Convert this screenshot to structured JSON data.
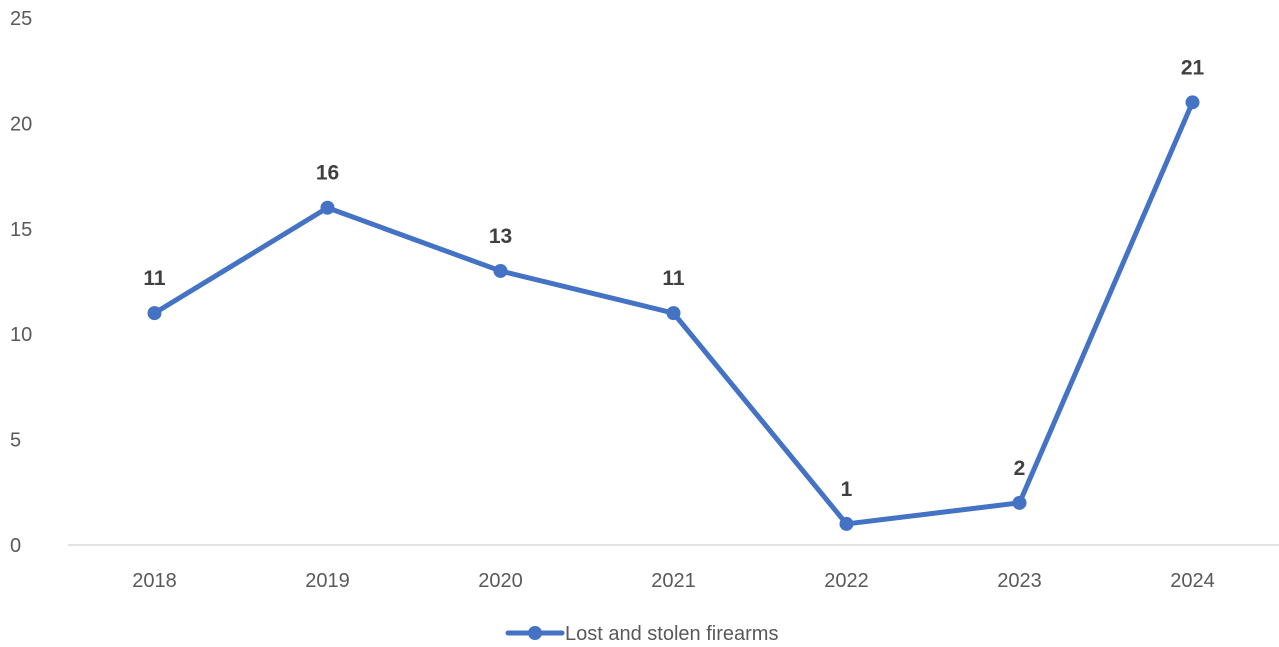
{
  "chart_data": {
    "type": "line",
    "categories": [
      "2018",
      "2019",
      "2020",
      "2021",
      "2022",
      "2023",
      "2024"
    ],
    "series": [
      {
        "name": "Lost and stolen firearms",
        "values": [
          11,
          16,
          13,
          11,
          1,
          2,
          21
        ],
        "color": "#4472C4"
      }
    ],
    "y_ticks": [
      "0",
      "5",
      "10",
      "15",
      "20",
      "25"
    ],
    "ylim": [
      0,
      25
    ],
    "data_labels": [
      "11",
      "16",
      "13",
      "11",
      "1",
      "2",
      "21"
    ],
    "grid": false,
    "legend": "bottom"
  }
}
